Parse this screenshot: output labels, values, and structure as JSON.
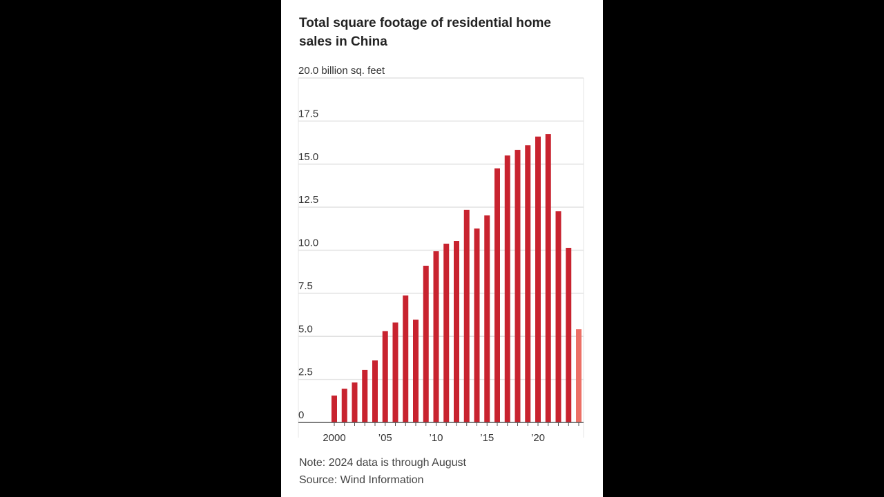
{
  "chart_data": {
    "type": "bar",
    "title": "Total square footage of residential home sales in China",
    "ylabel": "billion sq. feet",
    "ylim": [
      0,
      20
    ],
    "yticks": [
      "0",
      "2.5",
      "5.0",
      "7.5",
      "10.0",
      "12.5",
      "15.0",
      "17.5",
      "20.0 billion sq. feet"
    ],
    "ytick_values": [
      0,
      2.5,
      5,
      7.5,
      10,
      12.5,
      15,
      17.5,
      20
    ],
    "xtick_labels": [
      {
        "year": 2000,
        "label": "2000"
      },
      {
        "year": 2005,
        "label": "’05"
      },
      {
        "year": 2010,
        "label": "’10"
      },
      {
        "year": 2015,
        "label": "’15"
      },
      {
        "year": 2020,
        "label": "’20"
      }
    ],
    "categories": [
      2000,
      2001,
      2002,
      2003,
      2004,
      2005,
      2006,
      2007,
      2008,
      2009,
      2010,
      2011,
      2012,
      2013,
      2014,
      2015,
      2016,
      2017,
      2018,
      2019,
      2020,
      2021,
      2022,
      2023,
      2024
    ],
    "values": [
      1.56,
      1.96,
      2.32,
      3.05,
      3.6,
      5.3,
      5.8,
      7.37,
      5.97,
      9.1,
      9.94,
      10.38,
      10.54,
      12.35,
      11.26,
      12.02,
      14.75,
      15.5,
      15.83,
      16.1,
      16.6,
      16.75,
      12.26,
      10.14,
      5.41
    ],
    "grid": true,
    "colors": {
      "bar": "#c8232f",
      "partial_bar": "#ec7066"
    },
    "partial_year": 2024
  },
  "footer": {
    "note": "Note: 2024 data is through August",
    "source": "Source: Wind Information"
  }
}
